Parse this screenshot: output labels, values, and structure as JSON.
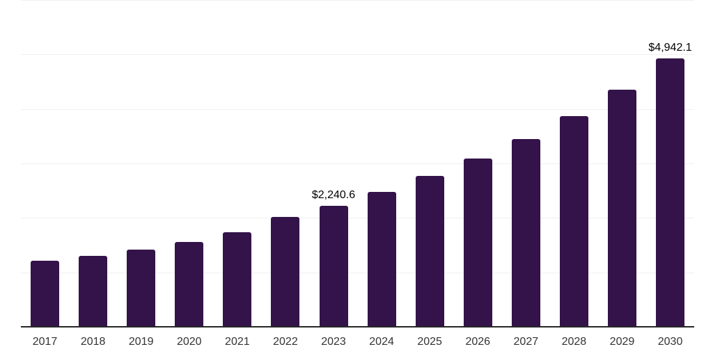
{
  "chart_data": {
    "type": "bar",
    "title": "",
    "xlabel": "",
    "ylabel": "",
    "categories": [
      "2017",
      "2018",
      "2019",
      "2020",
      "2021",
      "2022",
      "2023",
      "2024",
      "2025",
      "2026",
      "2027",
      "2028",
      "2029",
      "2030"
    ],
    "values": [
      1220,
      1320,
      1430,
      1570,
      1750,
      2030,
      2240.6,
      2490,
      2780,
      3100,
      3460,
      3880,
      4370,
      4942.1
    ],
    "data_labels": [
      "",
      "",
      "",
      "",
      "",
      "",
      "$2,240.6",
      "",
      "",
      "",
      "",
      "",
      "",
      "$4,942.1"
    ],
    "ylim": [
      0,
      6000
    ],
    "gridline_step": 1000,
    "grid": true,
    "legend_position": "none",
    "colors": {
      "bar": "#331349",
      "gridline": "#f0f0f0",
      "axis_line": "#262626",
      "data_label": "#000000",
      "tick_label": "#333333",
      "background": "#ffffff"
    }
  }
}
